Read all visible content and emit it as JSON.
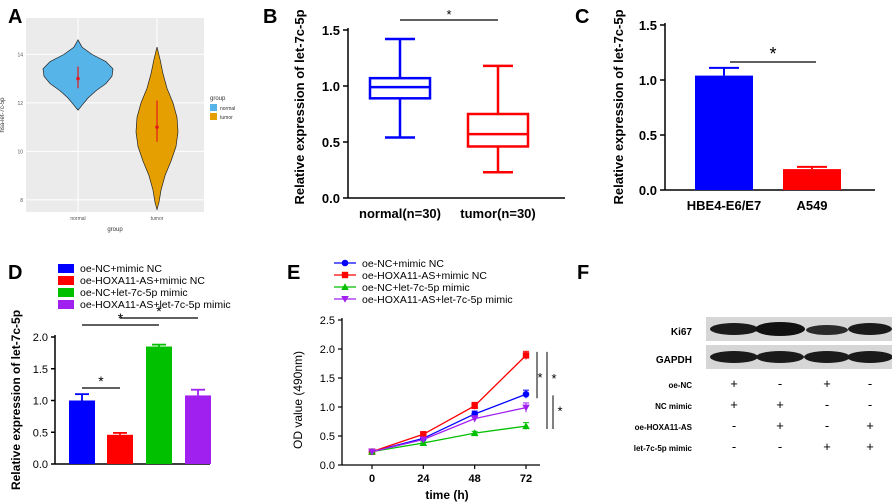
{
  "panels": {
    "A": "A",
    "B": "B",
    "C": "C",
    "D": "D",
    "E": "E",
    "F": "F"
  },
  "chart_data": [
    {
      "id": "A",
      "type": "violin",
      "xlabel": "group",
      "ylabel": "hsa-let-7c-5p",
      "categories": [
        "normal",
        "tumor"
      ],
      "yticks": [
        8,
        10,
        12,
        14
      ],
      "ylim": [
        7.5,
        15.5
      ],
      "groups": [
        {
          "name": "normal",
          "color": "#56B4E9",
          "median": 13.0,
          "q1": 12.6,
          "q3": 13.5,
          "min": 11.7,
          "max": 14.6
        },
        {
          "name": "tumor",
          "color": "#E69F00",
          "median": 11.0,
          "q1": 10.4,
          "q3": 12.1,
          "min": 7.6,
          "max": 14.3
        }
      ],
      "legend": {
        "title": "group",
        "entries": [
          "normal",
          "tumor"
        ]
      }
    },
    {
      "id": "B",
      "type": "boxplot",
      "ylabel": "Relative expression of let-7c-5p",
      "categories": [
        "normal(n=30)",
        "tumor(n=30)"
      ],
      "yticks": [
        0.0,
        0.5,
        1.0,
        1.5
      ],
      "ytick_labels": [
        "0.0",
        "0.5",
        "1.0",
        "1.5"
      ],
      "ylim": [
        0,
        1.5
      ],
      "boxes": [
        {
          "name": "normal(n=30)",
          "color": "#0000FF",
          "min": 0.54,
          "q1": 0.89,
          "median": 0.99,
          "q3": 1.07,
          "max": 1.42
        },
        {
          "name": "tumor(n=30)",
          "color": "#FF0000",
          "min": 0.23,
          "q1": 0.46,
          "median": 0.57,
          "q3": 0.75,
          "max": 1.18
        }
      ],
      "significance": "*"
    },
    {
      "id": "C",
      "type": "bar",
      "ylabel": "Relative expression of let-7c-5p",
      "categories": [
        "HBE4-E6/E7",
        "A549"
      ],
      "values": [
        1.04,
        0.19
      ],
      "errors": [
        0.07,
        0.02
      ],
      "colors": [
        "#0000FF",
        "#FF0000"
      ],
      "yticks": [
        0.0,
        0.5,
        1.0,
        1.5
      ],
      "ytick_labels": [
        "0.0",
        "0.5",
        "1.0",
        "1.5"
      ],
      "ylim": [
        0,
        1.5
      ],
      "significance": "*"
    },
    {
      "id": "D",
      "type": "bar",
      "ylabel": "Relative expression of let-7c-5p",
      "categories": [
        "oe-NC+mimic NC",
        "oe-HOXA11-AS+mimic NC",
        "oe-NC+let-7c-5p mimic",
        "oe-HOXA11-AS+let-7c-5p mimic"
      ],
      "values": [
        1.0,
        0.46,
        1.85,
        1.08
      ],
      "errors": [
        0.1,
        0.03,
        0.03,
        0.09
      ],
      "colors": [
        "#0000FF",
        "#FF0000",
        "#00C000",
        "#A020F0"
      ],
      "yticks": [
        0.0,
        0.5,
        1.0,
        1.5,
        2.0
      ],
      "ytick_labels": [
        "0.0",
        "0.5",
        "1.0",
        "1.5",
        "2.0"
      ],
      "ylim": [
        0,
        2.0
      ],
      "legend": [
        "oe-NC+mimic NC",
        "oe-HOXA11-AS+mimic NC",
        "oe-NC+let-7c-5p mimic",
        "oe-HOXA11-AS+let-7c-5p mimic"
      ],
      "significance": [
        "*",
        "*",
        "*"
      ]
    },
    {
      "id": "E",
      "type": "line",
      "xlabel": "time (h)",
      "ylabel": "OD value (490nm)",
      "x": [
        0,
        24,
        48,
        72
      ],
      "xticks": [
        0,
        24,
        48,
        72
      ],
      "yticks": [
        0.0,
        0.5,
        1.0,
        1.5,
        2.0,
        2.5
      ],
      "ytick_labels": [
        "0.0",
        "0.5",
        "1.0",
        "1.5",
        "2.0",
        "2.5"
      ],
      "ylim": [
        0,
        2.5
      ],
      "series": [
        {
          "name": "oe-NC+mimic NC",
          "color": "#0000FF",
          "marker": "circle",
          "values": [
            0.23,
            0.46,
            0.88,
            1.22
          ],
          "errors": [
            0.02,
            0.03,
            0.05,
            0.07
          ]
        },
        {
          "name": "oe-HOXA11-AS+mimic NC",
          "color": "#FF0000",
          "marker": "square",
          "values": [
            0.23,
            0.53,
            1.02,
            1.89
          ],
          "errors": [
            0.02,
            0.03,
            0.06,
            0.07
          ]
        },
        {
          "name": "oe-NC+let-7c-5p mimic",
          "color": "#00C000",
          "marker": "triangle",
          "values": [
            0.23,
            0.38,
            0.55,
            0.67
          ],
          "errors": [
            0.02,
            0.02,
            0.03,
            0.06
          ]
        },
        {
          "name": "oe-HOXA11-AS+let-7c-5p mimic",
          "color": "#A020F0",
          "marker": "triangle-down",
          "values": [
            0.23,
            0.44,
            0.8,
            0.99
          ],
          "errors": [
            0.02,
            0.03,
            0.05,
            0.08
          ]
        }
      ],
      "significance": [
        "*",
        "*",
        "*"
      ]
    }
  ],
  "blot": {
    "rows": [
      "Ki67",
      "GAPDH"
    ],
    "conditions": [
      {
        "label": "oe-NC",
        "values": [
          "+",
          "-",
          "+",
          "-"
        ]
      },
      {
        "label": "NC mimic",
        "values": [
          "+",
          "+",
          "-",
          "-"
        ]
      },
      {
        "label": "oe-HOXA11-AS",
        "values": [
          "-",
          "+",
          "-",
          "+"
        ]
      },
      {
        "label": "let-7c-5p mimic",
        "values": [
          "-",
          "-",
          "+",
          "+"
        ]
      }
    ]
  }
}
